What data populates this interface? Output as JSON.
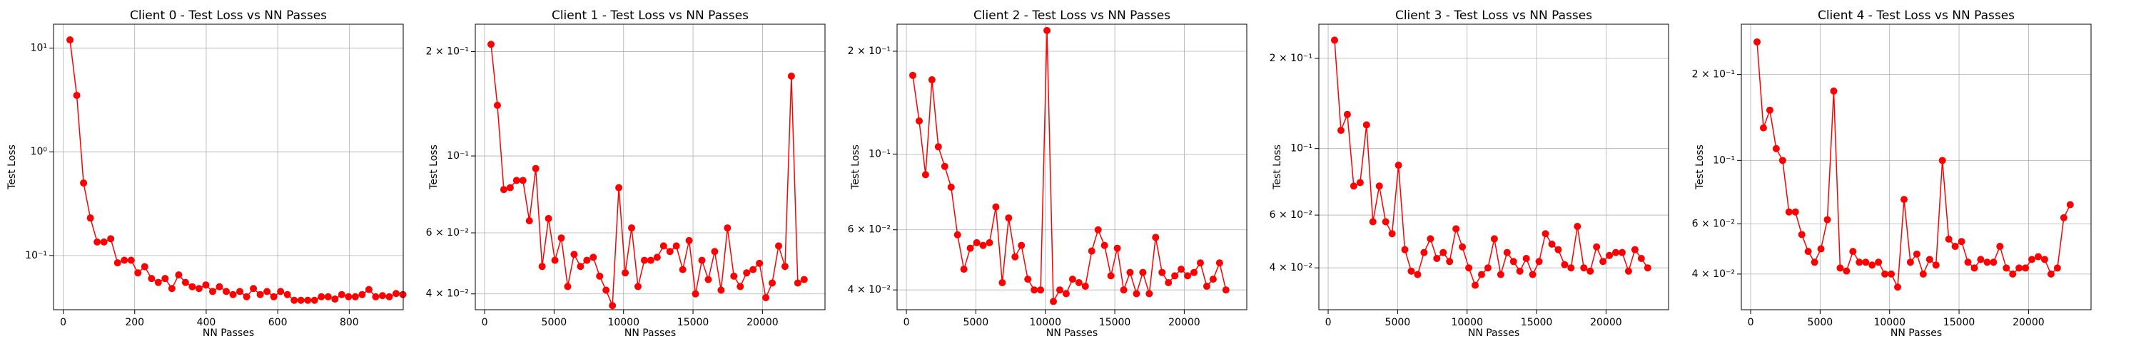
{
  "chart_data": [
    {
      "type": "line",
      "title": "Client 0 - Test Loss vs NN Passes",
      "xlabel": "NN Passes",
      "ylabel": "Test Loss",
      "log_y": true,
      "grid": true,
      "xlim": [
        -27,
        951
      ],
      "xticks": [
        0,
        200,
        400,
        600,
        800
      ],
      "ylim": [
        0.03,
        17
      ],
      "yticks": [
        {
          "value": 0.1,
          "label": "10⁻¹"
        },
        {
          "value": 1,
          "label": "10⁰"
        },
        {
          "value": 10,
          "label": "10¹"
        }
      ],
      "x": [
        19,
        38,
        57,
        76,
        95,
        114,
        133,
        152,
        171,
        190,
        209,
        228,
        247,
        266,
        285,
        304,
        323,
        342,
        361,
        380,
        399,
        418,
        437,
        456,
        475,
        494,
        513,
        532,
        551,
        570,
        589,
        608,
        627,
        646,
        665,
        684,
        703,
        722,
        741,
        760,
        779,
        798,
        817,
        836,
        855,
        874,
        893,
        912,
        931,
        950
      ],
      "series": [
        {
          "color": "#ff0000",
          "values": [
            12,
            3.5,
            0.5,
            0.23,
            0.135,
            0.135,
            0.145,
            0.085,
            0.09,
            0.09,
            0.068,
            0.078,
            0.06,
            0.055,
            0.06,
            0.048,
            0.065,
            0.055,
            0.05,
            0.048,
            0.052,
            0.045,
            0.05,
            0.045,
            0.042,
            0.045,
            0.04,
            0.048,
            0.042,
            0.045,
            0.04,
            0.045,
            0.042,
            0.037,
            0.037,
            0.037,
            0.037,
            0.04,
            0.04,
            0.038,
            0.042,
            0.04,
            0.04,
            0.042,
            0.047,
            0.04,
            0.041,
            0.04,
            0.043,
            0.042
          ]
        }
      ]
    },
    {
      "type": "line",
      "title": "Client 1 - Test Loss vs NN Passes",
      "xlabel": "NN Passes",
      "ylabel": "Test Loss",
      "log_y": true,
      "grid": true,
      "xlim": [
        -670,
        24500
      ],
      "xticks": [
        0,
        5000,
        10000,
        15000,
        20000
      ],
      "ylim": [
        0.036,
        0.24
      ],
      "yticks": [
        {
          "value": 0.04,
          "label": "4 × 10⁻²"
        },
        {
          "value": 0.06,
          "label": "6 × 10⁻²"
        },
        {
          "value": 0.1,
          "label": "10⁻¹"
        },
        {
          "value": 0.2,
          "label": "2 × 10⁻¹"
        }
      ],
      "x": [
        460,
        920,
        1380,
        1840,
        2300,
        2760,
        3220,
        3680,
        4140,
        4600,
        5060,
        5520,
        5980,
        6440,
        6900,
        7360,
        7820,
        8280,
        8740,
        9200,
        9660,
        10120,
        10580,
        11040,
        11500,
        11960,
        12420,
        12880,
        13340,
        13800,
        14260,
        14720,
        15180,
        15640,
        16100,
        16560,
        17020,
        17480,
        17940,
        18400,
        18860,
        19320,
        19780,
        20240,
        20700,
        21160,
        21620,
        22080,
        22540,
        23000
      ],
      "series": [
        {
          "color": "#ff0000",
          "values": [
            0.21,
            0.14,
            0.08,
            0.081,
            0.085,
            0.085,
            0.065,
            0.092,
            0.048,
            0.066,
            0.05,
            0.058,
            0.042,
            0.052,
            0.048,
            0.05,
            0.051,
            0.045,
            0.041,
            0.037,
            0.081,
            0.046,
            0.062,
            0.042,
            0.05,
            0.05,
            0.051,
            0.055,
            0.053,
            0.055,
            0.047,
            0.057,
            0.04,
            0.05,
            0.044,
            0.053,
            0.041,
            0.062,
            0.045,
            0.042,
            0.046,
            0.047,
            0.049,
            0.039,
            0.043,
            0.055,
            0.048,
            0.17,
            0.043,
            0.044
          ]
        }
      ]
    },
    {
      "type": "line",
      "title": "Client 2 - Test Loss vs NN Passes",
      "xlabel": "NN Passes",
      "ylabel": "Test Loss",
      "log_y": true,
      "grid": true,
      "xlim": [
        -670,
        24500
      ],
      "xticks": [
        0,
        5000,
        10000,
        15000,
        20000
      ],
      "ylim": [
        0.035,
        0.24
      ],
      "yticks": [
        {
          "value": 0.04,
          "label": "4 × 10⁻²"
        },
        {
          "value": 0.06,
          "label": "6 × 10⁻²"
        },
        {
          "value": 0.1,
          "label": "10⁻¹"
        },
        {
          "value": 0.2,
          "label": "2 × 10⁻¹"
        }
      ],
      "x": [
        460,
        920,
        1380,
        1840,
        2300,
        2760,
        3220,
        3680,
        4140,
        4600,
        5060,
        5520,
        5980,
        6440,
        6900,
        7360,
        7820,
        8280,
        8740,
        9200,
        9660,
        10120,
        10580,
        11040,
        11500,
        11960,
        12420,
        12880,
        13340,
        13800,
        14260,
        14720,
        15180,
        15640,
        16100,
        16560,
        17020,
        17480,
        17940,
        18400,
        18860,
        19320,
        19780,
        20240,
        20700,
        21160,
        21620,
        22080,
        22540,
        23000
      ],
      "series": [
        {
          "color": "#ff0000",
          "values": [
            0.17,
            0.125,
            0.087,
            0.165,
            0.105,
            0.092,
            0.08,
            0.058,
            0.046,
            0.053,
            0.055,
            0.054,
            0.055,
            0.07,
            0.042,
            0.065,
            0.05,
            0.054,
            0.043,
            0.04,
            0.04,
            0.23,
            0.037,
            0.04,
            0.039,
            0.043,
            0.042,
            0.041,
            0.052,
            0.06,
            0.054,
            0.044,
            0.053,
            0.04,
            0.045,
            0.039,
            0.045,
            0.039,
            0.057,
            0.045,
            0.042,
            0.044,
            0.046,
            0.044,
            0.045,
            0.048,
            0.041,
            0.043,
            0.048,
            0.04
          ]
        }
      ]
    },
    {
      "type": "line",
      "title": "Client 3 - Test Loss vs NN Passes",
      "xlabel": "NN Passes",
      "ylabel": "Test Loss",
      "log_y": true,
      "grid": true,
      "xlim": [
        -670,
        24500
      ],
      "xticks": [
        0,
        5000,
        10000,
        15000,
        20000
      ],
      "ylim": [
        0.029,
        0.26
      ],
      "yticks": [
        {
          "value": 0.04,
          "label": "4 × 10⁻²"
        },
        {
          "value": 0.06,
          "label": "6 × 10⁻²"
        },
        {
          "value": 0.1,
          "label": "10⁻¹"
        },
        {
          "value": 0.2,
          "label": "2 × 10⁻¹"
        }
      ],
      "x": [
        460,
        920,
        1380,
        1840,
        2300,
        2760,
        3220,
        3680,
        4140,
        4600,
        5060,
        5520,
        5980,
        6440,
        6900,
        7360,
        7820,
        8280,
        8740,
        9200,
        9660,
        10120,
        10580,
        11040,
        11500,
        11960,
        12420,
        12880,
        13340,
        13800,
        14260,
        14720,
        15180,
        15640,
        16100,
        16560,
        17020,
        17480,
        17940,
        18400,
        18860,
        19320,
        19780,
        20240,
        20700,
        21160,
        21620,
        22080,
        22540,
        23000
      ],
      "series": [
        {
          "color": "#ff0000",
          "values": [
            0.23,
            0.115,
            0.13,
            0.075,
            0.077,
            0.12,
            0.057,
            0.075,
            0.057,
            0.052,
            0.088,
            0.046,
            0.039,
            0.038,
            0.045,
            0.05,
            0.043,
            0.045,
            0.042,
            0.054,
            0.047,
            0.04,
            0.035,
            0.038,
            0.04,
            0.05,
            0.038,
            0.045,
            0.042,
            0.039,
            0.043,
            0.038,
            0.042,
            0.052,
            0.048,
            0.046,
            0.041,
            0.04,
            0.055,
            0.04,
            0.039,
            0.047,
            0.042,
            0.044,
            0.045,
            0.045,
            0.039,
            0.046,
            0.043,
            0.04
          ]
        }
      ]
    },
    {
      "type": "line",
      "title": "Client 4 - Test Loss vs NN Passes",
      "xlabel": "NN Passes",
      "ylabel": "Test Loss",
      "log_y": true,
      "grid": true,
      "xlim": [
        -670,
        24500
      ],
      "xticks": [
        0,
        5000,
        10000,
        15000,
        20000
      ],
      "ylim": [
        0.03,
        0.3
      ],
      "yticks": [
        {
          "value": 0.04,
          "label": "4 × 10⁻²"
        },
        {
          "value": 0.06,
          "label": "6 × 10⁻²"
        },
        {
          "value": 0.1,
          "label": "10⁻¹"
        },
        {
          "value": 0.2,
          "label": "2 × 10⁻¹"
        }
      ],
      "x": [
        460,
        920,
        1380,
        1840,
        2300,
        2760,
        3220,
        3680,
        4140,
        4600,
        5060,
        5520,
        5980,
        6440,
        6900,
        7360,
        7820,
        8280,
        8740,
        9200,
        9660,
        10120,
        10580,
        11040,
        11500,
        11960,
        12420,
        12880,
        13340,
        13800,
        14260,
        14720,
        15180,
        15640,
        16100,
        16560,
        17020,
        17480,
        17940,
        18400,
        18860,
        19320,
        19780,
        20240,
        20700,
        21160,
        21620,
        22080,
        22540,
        23000
      ],
      "series": [
        {
          "color": "#ff0000",
          "values": [
            0.26,
            0.13,
            0.15,
            0.11,
            0.1,
            0.066,
            0.066,
            0.055,
            0.048,
            0.044,
            0.049,
            0.062,
            0.175,
            0.042,
            0.041,
            0.048,
            0.044,
            0.044,
            0.043,
            0.044,
            0.04,
            0.04,
            0.036,
            0.073,
            0.044,
            0.047,
            0.04,
            0.045,
            0.043,
            0.1,
            0.053,
            0.05,
            0.052,
            0.044,
            0.042,
            0.045,
            0.044,
            0.044,
            0.05,
            0.042,
            0.04,
            0.042,
            0.042,
            0.045,
            0.046,
            0.045,
            0.04,
            0.042,
            0.063,
            0.07
          ]
        }
      ]
    }
  ]
}
